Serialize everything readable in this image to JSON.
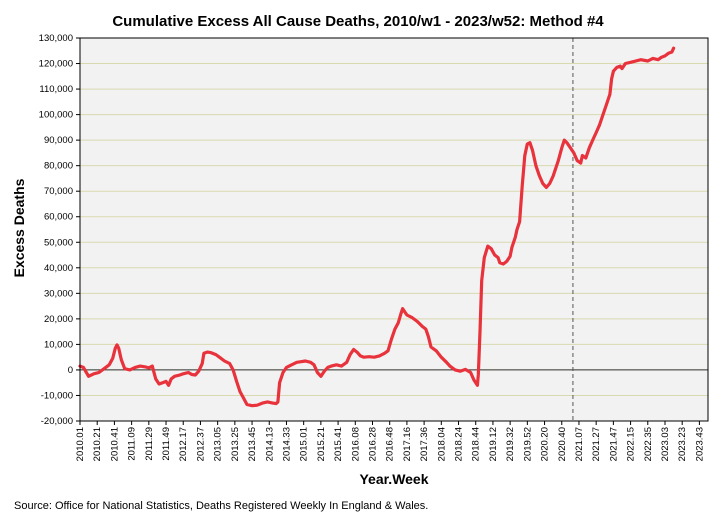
{
  "footer": {
    "source": "Source: Office for National Statistics, Deaths Registered Weekly In England & Wales."
  },
  "colors": {
    "line": "#e8323c",
    "plot_bg": "#f2f2f2",
    "grid": "#d9d9b0",
    "zero_line": "#333333",
    "divider": "#555555"
  },
  "chart_data": {
    "type": "line",
    "title": "Cumulative Excess All Cause Deaths, 2010/w1 - 2023/w52: Method #4",
    "xlabel": "Year.Week",
    "ylabel": "Excess Deaths",
    "ylim": [
      -20000,
      130000
    ],
    "yticks": [
      -20000,
      -10000,
      0,
      10000,
      20000,
      30000,
      40000,
      50000,
      60000,
      70000,
      80000,
      90000,
      100000,
      110000,
      120000,
      130000
    ],
    "ytick_labels": [
      "-20,000",
      "-10,000",
      "0",
      "10,000",
      "20,000",
      "30,000",
      "40,000",
      "50,000",
      "60,000",
      "70,000",
      "80,000",
      "90,000",
      "100,000",
      "110,000",
      "120,000",
      "130,000"
    ],
    "xlim": [
      0,
      730
    ],
    "xticks": [
      {
        "i": 0,
        "label": "2010.01"
      },
      {
        "i": 20,
        "label": "2010.21"
      },
      {
        "i": 40,
        "label": "2010.41"
      },
      {
        "i": 60,
        "label": "2011.09"
      },
      {
        "i": 80,
        "label": "2011.29"
      },
      {
        "i": 100,
        "label": "2011.49"
      },
      {
        "i": 120,
        "label": "2012.17"
      },
      {
        "i": 140,
        "label": "2012.37"
      },
      {
        "i": 160,
        "label": "2013.05"
      },
      {
        "i": 180,
        "label": "2013.25"
      },
      {
        "i": 200,
        "label": "2013.45"
      },
      {
        "i": 220,
        "label": "2014.13"
      },
      {
        "i": 240,
        "label": "2014.33"
      },
      {
        "i": 260,
        "label": "2015.01"
      },
      {
        "i": 280,
        "label": "2015.21"
      },
      {
        "i": 300,
        "label": "2015.41"
      },
      {
        "i": 320,
        "label": "2016.08"
      },
      {
        "i": 340,
        "label": "2016.28"
      },
      {
        "i": 360,
        "label": "2016.48"
      },
      {
        "i": 380,
        "label": "2017.16"
      },
      {
        "i": 400,
        "label": "2017.36"
      },
      {
        "i": 420,
        "label": "2018.04"
      },
      {
        "i": 440,
        "label": "2018.24"
      },
      {
        "i": 460,
        "label": "2018.44"
      },
      {
        "i": 480,
        "label": "2019.12"
      },
      {
        "i": 500,
        "label": "2019.32"
      },
      {
        "i": 520,
        "label": "2019.52"
      },
      {
        "i": 540,
        "label": "2020.20"
      },
      {
        "i": 560,
        "label": "2020.40"
      },
      {
        "i": 580,
        "label": "2021.07"
      },
      {
        "i": 600,
        "label": "2021.27"
      },
      {
        "i": 620,
        "label": "2021.47"
      },
      {
        "i": 640,
        "label": "2022.15"
      },
      {
        "i": 660,
        "label": "2022.35"
      },
      {
        "i": 680,
        "label": "2023.03"
      },
      {
        "i": 700,
        "label": "2023.23"
      },
      {
        "i": 720,
        "label": "2023.43"
      }
    ],
    "vline_at": 573,
    "series": [
      {
        "name": "Cumulative Excess Deaths",
        "points": [
          [
            0,
            1500
          ],
          [
            4,
            1000
          ],
          [
            10,
            -2500
          ],
          [
            16,
            -1500
          ],
          [
            22,
            -1000
          ],
          [
            28,
            500
          ],
          [
            34,
            2000
          ],
          [
            38,
            4500
          ],
          [
            41,
            8500
          ],
          [
            43,
            9800
          ],
          [
            45,
            8500
          ],
          [
            48,
            4000
          ],
          [
            52,
            500
          ],
          [
            58,
            0
          ],
          [
            64,
            1000
          ],
          [
            70,
            1500
          ],
          [
            76,
            1200
          ],
          [
            80,
            800
          ],
          [
            84,
            1500
          ],
          [
            88,
            -3500
          ],
          [
            92,
            -5500
          ],
          [
            96,
            -5000
          ],
          [
            100,
            -4500
          ],
          [
            103,
            -6000
          ],
          [
            106,
            -3500
          ],
          [
            110,
            -2500
          ],
          [
            116,
            -2000
          ],
          [
            120,
            -1500
          ],
          [
            126,
            -1000
          ],
          [
            130,
            -1800
          ],
          [
            134,
            -2000
          ],
          [
            138,
            -500
          ],
          [
            142,
            2500
          ],
          [
            144,
            6500
          ],
          [
            148,
            7000
          ],
          [
            152,
            6800
          ],
          [
            158,
            6000
          ],
          [
            162,
            5000
          ],
          [
            168,
            3500
          ],
          [
            174,
            2500
          ],
          [
            178,
            0
          ],
          [
            182,
            -4500
          ],
          [
            186,
            -8500
          ],
          [
            190,
            -11000
          ],
          [
            194,
            -13500
          ],
          [
            200,
            -14000
          ],
          [
            206,
            -13800
          ],
          [
            212,
            -13000
          ],
          [
            218,
            -12500
          ],
          [
            224,
            -13000
          ],
          [
            228,
            -13200
          ],
          [
            230,
            -12500
          ],
          [
            232,
            -5000
          ],
          [
            236,
            -1000
          ],
          [
            240,
            1000
          ],
          [
            246,
            2000
          ],
          [
            252,
            3000
          ],
          [
            256,
            3200
          ],
          [
            262,
            3500
          ],
          [
            268,
            3000
          ],
          [
            272,
            2000
          ],
          [
            276,
            -1000
          ],
          [
            280,
            -2500
          ],
          [
            284,
            -500
          ],
          [
            288,
            1000
          ],
          [
            292,
            1500
          ],
          [
            298,
            2000
          ],
          [
            304,
            1500
          ],
          [
            310,
            3000
          ],
          [
            314,
            6000
          ],
          [
            318,
            8000
          ],
          [
            322,
            7000
          ],
          [
            326,
            5500
          ],
          [
            330,
            5000
          ],
          [
            336,
            5200
          ],
          [
            342,
            5000
          ],
          [
            348,
            5500
          ],
          [
            354,
            6500
          ],
          [
            358,
            7500
          ],
          [
            362,
            12000
          ],
          [
            366,
            16000
          ],
          [
            370,
            18500
          ],
          [
            373,
            22000
          ],
          [
            375,
            24000
          ],
          [
            377,
            23000
          ],
          [
            380,
            21500
          ],
          [
            386,
            20500
          ],
          [
            392,
            19000
          ],
          [
            398,
            17000
          ],
          [
            402,
            16000
          ],
          [
            405,
            13000
          ],
          [
            408,
            9000
          ],
          [
            414,
            7500
          ],
          [
            420,
            5000
          ],
          [
            426,
            3000
          ],
          [
            430,
            1500
          ],
          [
            436,
            0
          ],
          [
            442,
            -500
          ],
          [
            448,
            200
          ],
          [
            454,
            -1000
          ],
          [
            458,
            -4000
          ],
          [
            462,
            -6000
          ],
          [
            463,
            -2000
          ],
          [
            465,
            15000
          ],
          [
            467,
            35000
          ],
          [
            470,
            44000
          ],
          [
            474,
            48500
          ],
          [
            478,
            47500
          ],
          [
            482,
            45000
          ],
          [
            486,
            44000
          ],
          [
            488,
            42000
          ],
          [
            492,
            41500
          ],
          [
            496,
            42500
          ],
          [
            500,
            44500
          ],
          [
            502,
            48000
          ],
          [
            506,
            52000
          ],
          [
            508,
            55000
          ],
          [
            511,
            58000
          ],
          [
            514,
            72000
          ],
          [
            517,
            84000
          ],
          [
            520,
            88500
          ],
          [
            523,
            89000
          ],
          [
            526,
            86000
          ],
          [
            530,
            80000
          ],
          [
            534,
            76000
          ],
          [
            538,
            73000
          ],
          [
            542,
            71500
          ],
          [
            546,
            73000
          ],
          [
            550,
            76000
          ],
          [
            556,
            82000
          ],
          [
            560,
            87000
          ],
          [
            563,
            90000
          ],
          [
            566,
            89000
          ],
          [
            570,
            87000
          ],
          [
            574,
            85000
          ],
          [
            578,
            82000
          ],
          [
            582,
            81000
          ],
          [
            584,
            84000
          ],
          [
            588,
            83000
          ],
          [
            592,
            87000
          ],
          [
            596,
            90000
          ],
          [
            600,
            93000
          ],
          [
            604,
            96000
          ],
          [
            608,
            100000
          ],
          [
            612,
            104000
          ],
          [
            616,
            108000
          ],
          [
            618,
            114000
          ],
          [
            620,
            117000
          ],
          [
            624,
            118500
          ],
          [
            628,
            119000
          ],
          [
            630,
            118000
          ],
          [
            634,
            120000
          ],
          [
            640,
            120500
          ],
          [
            646,
            121000
          ],
          [
            652,
            121500
          ],
          [
            660,
            121000
          ],
          [
            666,
            122000
          ],
          [
            672,
            121500
          ],
          [
            676,
            122500
          ],
          [
            680,
            123000
          ],
          [
            684,
            124000
          ],
          [
            688,
            124500
          ],
          [
            690,
            126000
          ]
        ]
      }
    ]
  }
}
